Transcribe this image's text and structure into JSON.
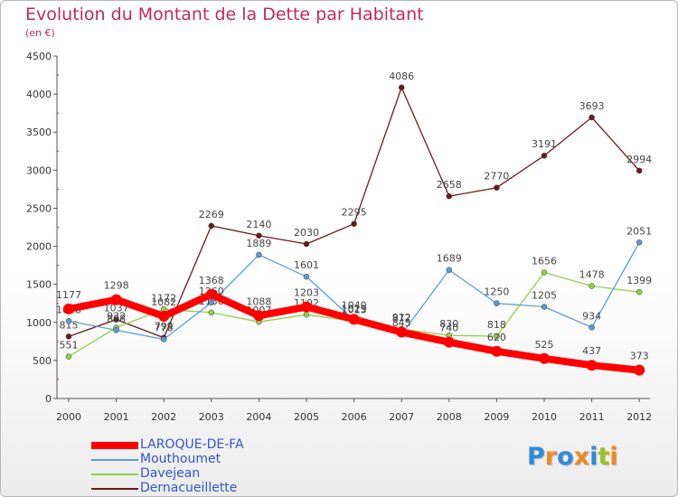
{
  "header": {
    "title": "Evolution du Montant de la Dette par Habitant",
    "subtitle": "(en €)"
  },
  "logo": {
    "text": "Proxiti"
  },
  "chart_data": {
    "type": "line",
    "title": "Evolution du Montant de la Dette par Habitant",
    "subtitle": "(en €)",
    "xlabel": "",
    "ylabel": "",
    "categories": [
      "2000",
      "2001",
      "2002",
      "2003",
      "2004",
      "2005",
      "2006",
      "2007",
      "2008",
      "2009",
      "2010",
      "2011",
      "2012"
    ],
    "ylim": [
      0,
      4500
    ],
    "yticks": [
      0,
      500,
      1000,
      1500,
      2000,
      2500,
      3000,
      3500,
      4000,
      4500
    ],
    "grid": false,
    "legend_position": "bottom-left",
    "series": [
      {
        "name": "LAROQUE-DE-FA",
        "color": "#ff0000",
        "values": [
          1177,
          1298,
          1082,
          1368,
          1088,
          1203,
          1040,
          872,
          740,
          620,
          525,
          437,
          373
        ]
      },
      {
        "name": "Mouthoumet",
        "color": "#5b9bd5",
        "values": [
          1018,
          898,
          778,
          1260,
          1889,
          1601,
          1029,
          845,
          1689,
          1250,
          1205,
          934,
          2051
        ]
      },
      {
        "name": "Davejean",
        "color": "#92d050",
        "values": [
          551,
          932,
          1172,
          1130,
          1007,
          1102,
          1013,
          912,
          830,
          818,
          1656,
          1478,
          1399
        ]
      },
      {
        "name": "Dernacueillette",
        "color": "#6b1b1b",
        "values": [
          815,
          1037,
          799,
          2269,
          2140,
          2030,
          2295,
          4086,
          2658,
          2770,
          3191,
          3693,
          2994
        ]
      }
    ]
  }
}
